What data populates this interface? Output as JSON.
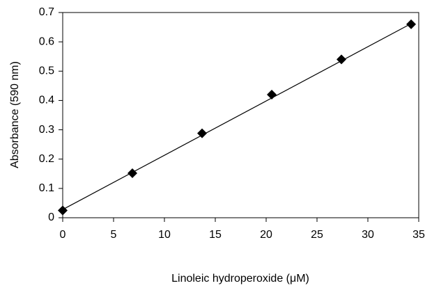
{
  "chart_data": {
    "type": "scatter",
    "x_label": "Linoleic hydroperoxide (μM)",
    "y_label": "Absorbance (590 nm)",
    "xlim": [
      0,
      35
    ],
    "xticks": [
      0,
      5,
      10,
      15,
      20,
      25,
      30,
      35
    ],
    "ylim": [
      0,
      0.7
    ],
    "yticks": [
      0,
      0.1,
      0.2,
      0.3,
      0.4,
      0.5,
      0.6,
      0.7
    ],
    "series": [
      {
        "color": "#000000",
        "marker": "diamond",
        "x": [
          0,
          6.85,
          13.7,
          20.55,
          27.4,
          34.25
        ],
        "values": [
          0.025,
          0.152,
          0.288,
          0.42,
          0.54,
          0.66
        ]
      },
      {
        "color": "#000000",
        "marker": "line",
        "x": [
          0,
          34.25
        ],
        "values": [
          0.028,
          0.662
        ]
      }
    ]
  }
}
